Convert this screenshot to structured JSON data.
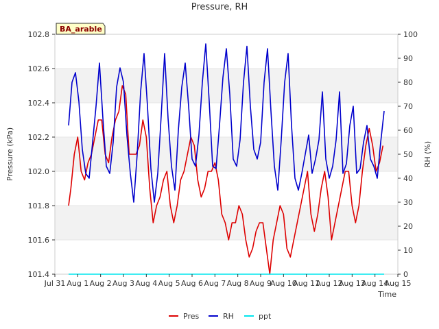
{
  "chart_data": {
    "type": "line",
    "title": "Pressure, RH",
    "xlabel": "Time",
    "ylabel": "Pressure (kPa)",
    "y2label": "RH (%)",
    "site_badge": "BA_arable",
    "x_ticks": [
      "Jul 31",
      "Aug 1",
      "Aug 2",
      "Aug 3",
      "Aug 4",
      "Aug 5",
      "Aug 6",
      "Aug 7",
      "Aug 8",
      "Aug 9",
      "Aug 10",
      "Aug 11",
      "Aug 12",
      "Aug 13",
      "Aug 14",
      "Aug 15"
    ],
    "xlim": [
      0,
      15
    ],
    "ylim": [
      101.4,
      102.8
    ],
    "y_ticks": [
      "101.4",
      "101.6",
      "101.8",
      "102.0",
      "102.2",
      "102.4",
      "102.6",
      "102.8"
    ],
    "y2lim": [
      0,
      100
    ],
    "y2_ticks": [
      "0",
      "10",
      "20",
      "30",
      "40",
      "50",
      "60",
      "70",
      "80",
      "90",
      "100"
    ],
    "grid": true,
    "legend_position": "bottom-center",
    "series": [
      {
        "name": "Pres",
        "axis": "left",
        "color": "#dd0000",
        "x": [
          0.6,
          0.7,
          0.85,
          1.0,
          1.15,
          1.3,
          1.45,
          1.6,
          1.75,
          1.9,
          2.05,
          2.2,
          2.35,
          2.5,
          2.65,
          2.8,
          2.95,
          3.1,
          3.25,
          3.4,
          3.55,
          3.7,
          3.85,
          4.0,
          4.15,
          4.3,
          4.45,
          4.6,
          4.75,
          4.9,
          5.05,
          5.2,
          5.35,
          5.5,
          5.65,
          5.8,
          5.95,
          6.1,
          6.25,
          6.4,
          6.55,
          6.7,
          6.85,
          7.0,
          7.15,
          7.3,
          7.45,
          7.6,
          7.75,
          7.9,
          8.05,
          8.2,
          8.35,
          8.5,
          8.65,
          8.8,
          8.95,
          9.1,
          9.25,
          9.4,
          9.55,
          9.7,
          9.85,
          10.0,
          10.15,
          10.3,
          10.45,
          10.6,
          10.75,
          10.9,
          11.05,
          11.2,
          11.35,
          11.5,
          11.65,
          11.8,
          11.95,
          12.1,
          12.25,
          12.4,
          12.55,
          12.7,
          12.85,
          13.0,
          13.15,
          13.3,
          13.45,
          13.6,
          13.75,
          13.9,
          14.05,
          14.2,
          14.35
        ],
        "values": [
          101.8,
          101.9,
          102.1,
          102.2,
          102.0,
          101.95,
          102.05,
          102.1,
          102.2,
          102.3,
          102.3,
          102.1,
          102.05,
          102.2,
          102.3,
          102.35,
          102.5,
          102.45,
          102.1,
          102.1,
          102.1,
          102.15,
          102.3,
          102.2,
          101.9,
          101.7,
          101.8,
          101.85,
          101.95,
          102.0,
          101.8,
          101.7,
          101.8,
          101.95,
          102.0,
          102.1,
          102.2,
          102.15,
          101.95,
          101.85,
          101.9,
          102.0,
          102.0,
          102.05,
          101.95,
          101.75,
          101.7,
          101.6,
          101.7,
          101.7,
          101.8,
          101.75,
          101.6,
          101.5,
          101.55,
          101.65,
          101.7,
          101.7,
          101.55,
          101.4,
          101.6,
          101.7,
          101.8,
          101.75,
          101.55,
          101.5,
          101.6,
          101.7,
          101.8,
          101.9,
          102.0,
          101.75,
          101.65,
          101.75,
          101.9,
          102.0,
          101.85,
          101.6,
          101.7,
          101.8,
          101.9,
          102.0,
          102.0,
          101.8,
          101.7,
          101.8,
          102.0,
          102.15,
          102.25,
          102.15,
          102.0,
          102.05,
          102.15
        ]
      },
      {
        "name": "RH",
        "axis": "right",
        "color": "#0000cc",
        "x": [
          0.6,
          0.75,
          0.9,
          1.05,
          1.2,
          1.35,
          1.5,
          1.65,
          1.8,
          1.95,
          2.1,
          2.25,
          2.4,
          2.55,
          2.7,
          2.85,
          3.0,
          3.15,
          3.3,
          3.45,
          3.6,
          3.75,
          3.9,
          4.05,
          4.2,
          4.35,
          4.5,
          4.65,
          4.8,
          4.95,
          5.1,
          5.25,
          5.4,
          5.55,
          5.7,
          5.85,
          6.0,
          6.15,
          6.3,
          6.45,
          6.6,
          6.75,
          6.9,
          7.05,
          7.2,
          7.35,
          7.5,
          7.65,
          7.8,
          7.95,
          8.1,
          8.25,
          8.4,
          8.55,
          8.7,
          8.85,
          9.0,
          9.15,
          9.3,
          9.45,
          9.6,
          9.75,
          9.9,
          10.05,
          10.2,
          10.35,
          10.5,
          10.65,
          10.8,
          10.95,
          11.1,
          11.25,
          11.4,
          11.55,
          11.7,
          11.85,
          12.0,
          12.15,
          12.3,
          12.45,
          12.6,
          12.75,
          12.9,
          13.05,
          13.2,
          13.35,
          13.5,
          13.65,
          13.8,
          13.95,
          14.1,
          14.25,
          14.4
        ],
        "values": [
          62,
          80,
          84,
          72,
          52,
          42,
          40,
          55,
          70,
          88,
          65,
          45,
          42,
          55,
          78,
          86,
          80,
          58,
          42,
          30,
          50,
          76,
          92,
          70,
          44,
          30,
          42,
          66,
          92,
          65,
          45,
          35,
          60,
          78,
          88,
          70,
          48,
          45,
          58,
          80,
          96,
          72,
          45,
          44,
          62,
          82,
          94,
          75,
          48,
          45,
          56,
          80,
          95,
          70,
          52,
          48,
          55,
          80,
          94,
          68,
          45,
          35,
          56,
          80,
          92,
          62,
          40,
          35,
          42,
          50,
          58,
          42,
          48,
          56,
          76,
          48,
          40,
          45,
          56,
          76,
          42,
          46,
          62,
          70,
          42,
          44,
          55,
          62,
          48,
          45,
          40,
          55,
          68
        ]
      },
      {
        "name": "ppt",
        "axis": "left",
        "color": "#00e5ee",
        "x": [
          0.6,
          14.4
        ],
        "values": [
          101.4,
          101.4
        ]
      }
    ]
  }
}
